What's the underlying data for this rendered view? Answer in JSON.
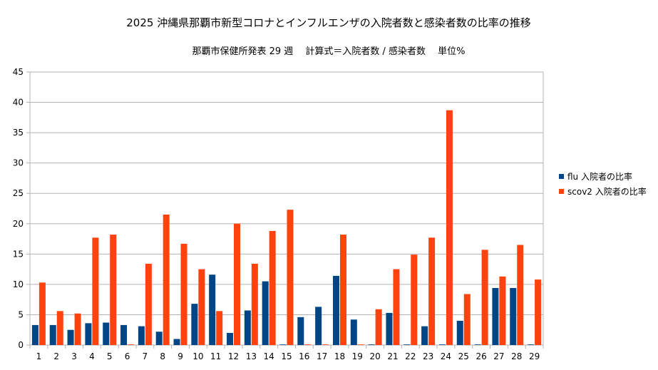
{
  "chart_data": {
    "type": "bar",
    "title": "2025 沖縄県那覇市新型コロナとインフルエンザの入院者数と感染者数の比率の推移",
    "subtitle": "那覇市保健所発表 29 週　 計算式＝入院者数 / 感染者数　 単位%",
    "xlabel": "",
    "ylabel": "",
    "ylim": [
      0,
      45
    ],
    "yticks": [
      0,
      5,
      10,
      15,
      20,
      25,
      30,
      35,
      40,
      45
    ],
    "grid": "horizontal",
    "legend_position": "right",
    "categories": [
      "1",
      "2",
      "3",
      "4",
      "5",
      "6",
      "7",
      "8",
      "9",
      "10",
      "11",
      "12",
      "13",
      "14",
      "15",
      "16",
      "17",
      "18",
      "19",
      "20",
      "21",
      "22",
      "23",
      "24",
      "25",
      "26",
      "27",
      "28",
      "29"
    ],
    "series": [
      {
        "name": "flu 入院者の比率",
        "color": "#004586",
        "values": [
          3.3,
          3.3,
          2.5,
          3.6,
          3.7,
          3.3,
          3.1,
          2.2,
          1.0,
          6.8,
          11.6,
          2.0,
          5.7,
          10.5,
          0.1,
          4.6,
          6.3,
          11.4,
          4.2,
          0.1,
          5.3,
          0.1,
          3.1,
          0.1,
          4.0,
          0.1,
          9.4,
          9.4,
          0.1
        ]
      },
      {
        "name": "scov2 入院者の比率",
        "color": "#ff420e",
        "values": [
          10.3,
          5.6,
          5.2,
          17.7,
          18.2,
          0.1,
          13.4,
          21.5,
          16.7,
          12.5,
          5.6,
          20.0,
          13.4,
          18.8,
          22.3,
          0.1,
          0.1,
          18.2,
          0.1,
          5.9,
          12.5,
          14.9,
          17.7,
          38.7,
          8.4,
          15.7,
          11.3,
          16.5,
          10.8
        ]
      }
    ]
  }
}
